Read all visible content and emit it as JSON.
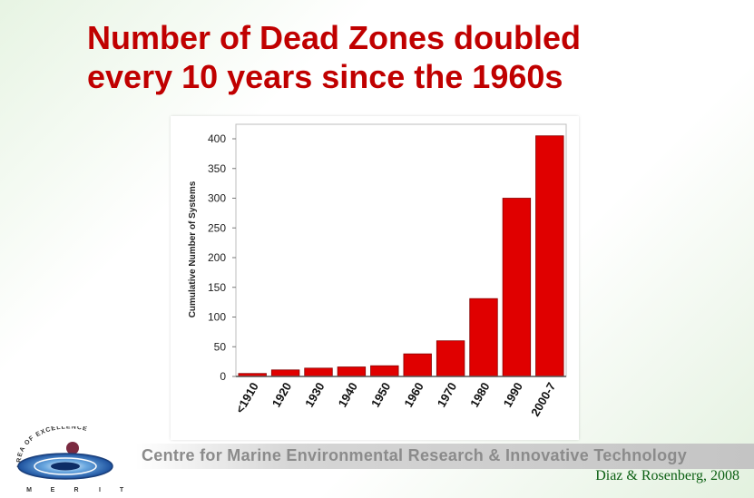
{
  "slide": {
    "title_line1": "Number of Dead Zones doubled",
    "title_line2": "every 10 years since the 1960s",
    "banner": "Centre for Marine Environmental Research & Innovative Technology",
    "citation": "Diaz & Rosenberg, 2008",
    "logo": {
      "arc_text": "AREA OF EXCELLENCE",
      "letters": [
        "M",
        "E",
        "R",
        "I",
        "T"
      ]
    }
  },
  "colors": {
    "title": "#c00000",
    "bar": "#e00000",
    "citation": "#0b5f12",
    "banner_text": "#8b8b8b"
  },
  "chart_data": {
    "type": "bar",
    "categories": [
      "<1910",
      "1920",
      "1930",
      "1940",
      "1950",
      "1960",
      "1970",
      "1980",
      "1990",
      "2000-7"
    ],
    "values": [
      5,
      11,
      14,
      16,
      18,
      38,
      60,
      131,
      300,
      405
    ],
    "ylabel": "Cumulative Number of Systems",
    "xlabel": "",
    "ylim": [
      0,
      400
    ],
    "yticks": [
      0,
      50,
      100,
      150,
      200,
      250,
      300,
      350,
      400
    ],
    "grid": false,
    "legend": "none"
  }
}
